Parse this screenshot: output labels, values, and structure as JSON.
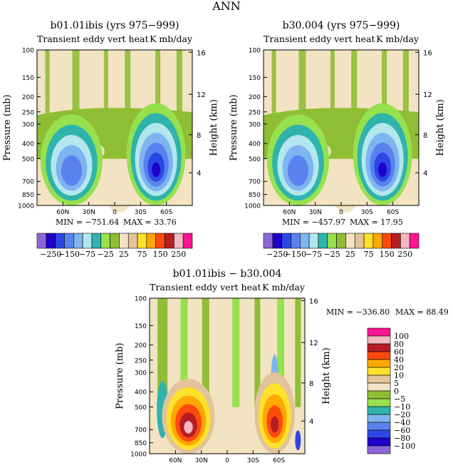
{
  "page": {
    "title": "ANN"
  },
  "chart_data": [
    {
      "type": "heatmap",
      "title": "b01.01ibis (yrs 975−999)",
      "subtitle_left": "Transient eddy vert heat",
      "subtitle_right": "K mb/day",
      "ylabel": "Pressure (mb)",
      "ylabel_right": "Height (km)",
      "x_ticks": [
        "60N",
        "30N",
        "0",
        "30S",
        "60S"
      ],
      "y_ticks": [
        "100",
        "150",
        "200",
        "250",
        "300",
        "400",
        "500",
        "700",
        "850",
        "1000"
      ],
      "y_right_ticks": [
        "16",
        "12",
        "8",
        "4"
      ],
      "min_label": "MIN = −751.64",
      "max_label": "MAX = 33.76",
      "colorbar_labels": [
        "−250",
        "−150",
        "−75",
        "−25",
        "25",
        "75",
        "150",
        "250"
      ],
      "levels": [
        -250,
        -200,
        -150,
        -100,
        -75,
        -50,
        -25,
        -5,
        5,
        25,
        50,
        75,
        100,
        150,
        200,
        250
      ],
      "min": -751.64,
      "max": 33.76
    },
    {
      "type": "heatmap",
      "title": "b30.004 (yrs 975−999)",
      "subtitle_left": "Transient eddy vert heat",
      "subtitle_right": "K mb/day",
      "ylabel": "Pressure (mb)",
      "ylabel_right": "Height (km)",
      "x_ticks": [
        "60N",
        "30N",
        "0",
        "30S",
        "60S"
      ],
      "y_ticks": [
        "100",
        "150",
        "200",
        "250",
        "300",
        "400",
        "500",
        "700",
        "850",
        "1000"
      ],
      "y_right_ticks": [
        "16",
        "12",
        "8",
        "4"
      ],
      "min_label": "MIN = −457.97",
      "max_label": "MAX = 17.95",
      "colorbar_labels": [
        "−250",
        "−150",
        "−75",
        "−25",
        "25",
        "75",
        "150",
        "250"
      ],
      "levels": [
        -250,
        -200,
        -150,
        -100,
        -75,
        -50,
        -25,
        -5,
        5,
        25,
        50,
        75,
        100,
        150,
        200,
        250
      ],
      "min": -457.97,
      "max": 17.95
    },
    {
      "type": "heatmap",
      "title": "b01.01ibis − b30.004",
      "subtitle_left": "Transient eddy vert heat",
      "subtitle_right": "K mb/day",
      "ylabel": "Pressure (mb)",
      "ylabel_right": "Height (km)",
      "x_ticks": [
        "60N",
        "30N",
        "0",
        "30S",
        "60S"
      ],
      "y_ticks": [
        "100",
        "150",
        "200",
        "250",
        "300",
        "400",
        "500",
        "700",
        "850",
        "1000"
      ],
      "y_right_ticks": [
        "16",
        "12",
        "8",
        "4"
      ],
      "min_label": "MIN = −336.80",
      "max_label": "MAX = 88.49",
      "colorbar_labels": [
        "100",
        "80",
        "60",
        "40",
        "20",
        "10",
        "5",
        "0",
        "−5",
        "−10",
        "−20",
        "−40",
        "−60",
        "−80",
        "−100"
      ],
      "min": -336.8,
      "max": 88.49
    }
  ],
  "colors": {
    "scale_abs": [
      "#8c66d9",
      "#1e00c8",
      "#2d46e6",
      "#5a82ee",
      "#7eb4f0",
      "#b4e6ee",
      "#2eb4ac",
      "#97e04e",
      "#8fbe34",
      "#f2e3c2",
      "#e2c49a",
      "#fde12a",
      "#fea806",
      "#fe4a0c",
      "#b41e24",
      "#f4b8c0",
      "#ff1493"
    ],
    "scale_diff": [
      "#ff1493",
      "#f4b8c0",
      "#b41e24",
      "#fe4a0c",
      "#fea806",
      "#fde12a",
      "#e2c49a",
      "#f2e3c2",
      "#8fbe34",
      "#97e04e",
      "#2eb4ac",
      "#7eb4f0",
      "#5a82ee",
      "#2d46e6",
      "#1e00c8",
      "#8c66d9"
    ],
    "background": "#f2e3c2",
    "green_dark": "#8fbe34",
    "green_light": "#97e04e"
  }
}
